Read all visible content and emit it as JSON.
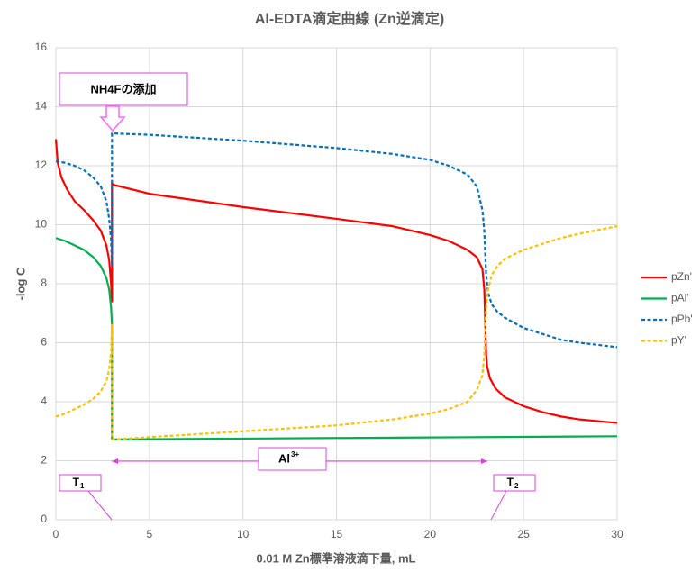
{
  "chart_data": {
    "type": "line",
    "title": "Al-EDTA滴定曲線 (Zn逆滴定)",
    "x_label": "0.01 M Zn標準溶液滴下量, mL",
    "y_label": "-log C",
    "xlim": [
      0,
      30
    ],
    "xticks": [
      0,
      5,
      10,
      15,
      20,
      25,
      30
    ],
    "ylim": [
      0,
      16
    ],
    "yticks": [
      0,
      2,
      4,
      6,
      8,
      10,
      12,
      14,
      16
    ],
    "grid": true,
    "legend": "right",
    "annotations": [
      {
        "text": "NH4Fの添加"
      },
      {
        "text": "Al",
        "sup": "3+"
      },
      {
        "text": "T",
        "sub": "1"
      },
      {
        "text": "T",
        "sub": "2"
      }
    ],
    "series": [
      {
        "name": "pZn'",
        "color": "#ff0000",
        "dash": false,
        "x": [
          0,
          0.1,
          0.3,
          0.6,
          1,
          1.5,
          2,
          2.4,
          2.7,
          2.85,
          2.95,
          3,
          3,
          3.1,
          5,
          10,
          15,
          18,
          20,
          21,
          22,
          22.5,
          22.8,
          22.9,
          23,
          23.05,
          23.2,
          23.5,
          24,
          25,
          26,
          27,
          28,
          30
        ],
        "values": [
          12.9,
          12.1,
          11.6,
          11.2,
          10.8,
          10.5,
          10.15,
          9.8,
          9.3,
          8.8,
          8.0,
          7.4,
          11.4,
          11.35,
          11.05,
          10.6,
          10.2,
          9.95,
          9.65,
          9.45,
          9.15,
          8.9,
          8.5,
          7.8,
          5.6,
          5.2,
          4.8,
          4.45,
          4.15,
          3.85,
          3.65,
          3.5,
          3.4,
          3.28
        ]
      },
      {
        "name": "pAl'",
        "color": "#00b050",
        "dash": false,
        "x": [
          0,
          0.5,
          1,
          1.5,
          2,
          2.4,
          2.7,
          2.85,
          2.95,
          3,
          3,
          5,
          10,
          15,
          20,
          25,
          30
        ],
        "values": [
          9.55,
          9.45,
          9.3,
          9.15,
          8.9,
          8.6,
          8.2,
          7.8,
          7.2,
          6.6,
          2.72,
          2.73,
          2.75,
          2.77,
          2.79,
          2.81,
          2.83
        ]
      },
      {
        "name": "pPb'",
        "color": "#0070c0",
        "dash": true,
        "x": [
          0,
          0.5,
          1,
          1.5,
          2,
          2.4,
          2.7,
          2.85,
          2.95,
          3,
          3,
          5,
          10,
          15,
          18,
          20,
          21,
          22,
          22.5,
          22.8,
          22.9,
          23,
          23.1,
          23.3,
          23.6,
          24,
          25,
          26,
          27,
          28,
          30
        ],
        "values": [
          12.15,
          12.1,
          12.0,
          11.85,
          11.6,
          11.3,
          10.8,
          10.2,
          9.5,
          8.6,
          13.1,
          13.05,
          12.85,
          12.6,
          12.4,
          12.2,
          12.0,
          11.7,
          11.3,
          10.5,
          9.8,
          8.3,
          7.7,
          7.3,
          7.05,
          6.85,
          6.5,
          6.3,
          6.1,
          6.0,
          5.85
        ]
      },
      {
        "name": "pY'",
        "color": "#ffc000",
        "dash": true,
        "x": [
          0,
          0.5,
          1,
          1.5,
          2,
          2.4,
          2.7,
          2.85,
          2.95,
          3,
          3,
          5,
          10,
          15,
          18,
          20,
          21,
          22,
          22.5,
          22.8,
          22.9,
          23,
          23.1,
          23.3,
          23.6,
          24,
          25,
          26,
          27,
          28,
          30
        ],
        "values": [
          3.5,
          3.6,
          3.75,
          3.9,
          4.1,
          4.35,
          4.7,
          5.1,
          5.7,
          6.6,
          2.72,
          2.8,
          3.0,
          3.2,
          3.4,
          3.6,
          3.75,
          4.0,
          4.4,
          4.9,
          5.6,
          7.2,
          7.8,
          8.3,
          8.6,
          8.85,
          9.15,
          9.35,
          9.55,
          9.7,
          9.95
        ]
      }
    ]
  }
}
